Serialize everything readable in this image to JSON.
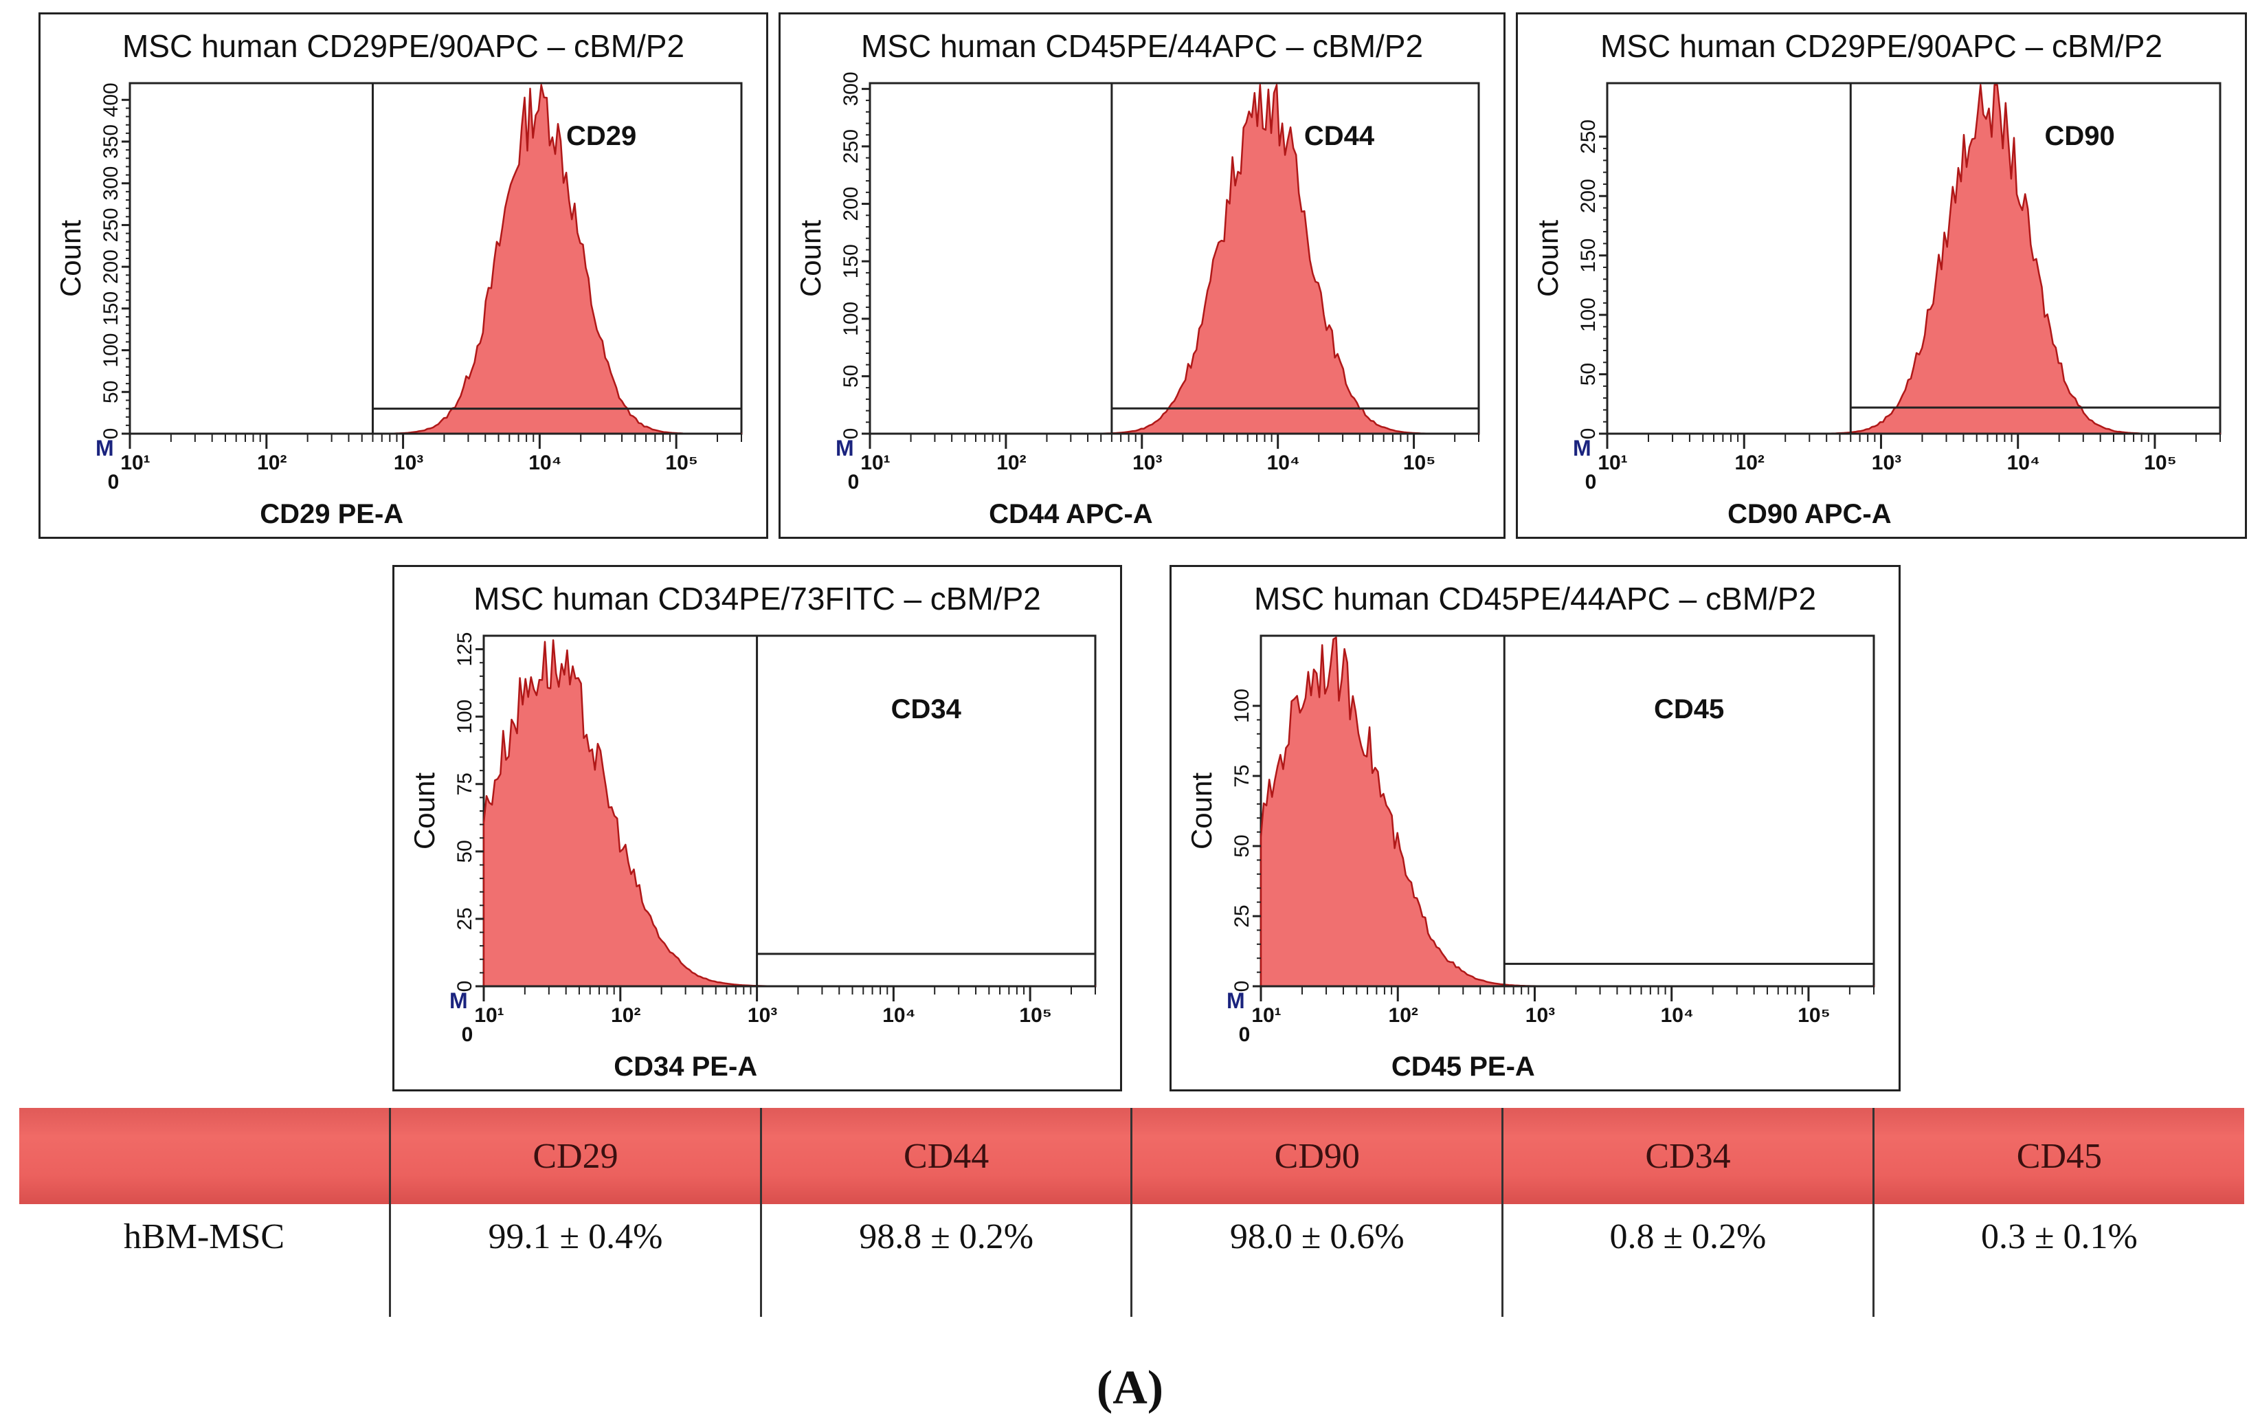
{
  "colors": {
    "fill": "#f07070",
    "stroke": "#b01818",
    "table_header": "#ec615e"
  },
  "chart_data": [
    {
      "type": "histogram",
      "title": "MSC human CD29PE/90APC – cBM/P2",
      "marker": "CD29",
      "xlabel": "CD29 PE-A",
      "ylabel": "Count",
      "xscale": "log",
      "xlim": [
        10,
        300000
      ],
      "ylim": [
        0,
        420
      ],
      "yticks": [
        0,
        50,
        100,
        150,
        200,
        250,
        300,
        350,
        400
      ],
      "xtick_labels": [
        "10¹",
        "10²",
        "10³",
        "10⁴",
        "10⁵"
      ],
      "gate": {
        "x_start": 600,
        "x_end": 300000,
        "baseline": 30
      },
      "peak_position": 10000,
      "peak_count": 405,
      "peak_width_decades": 0.28
    },
    {
      "type": "histogram",
      "title": "MSC human CD45PE/44APC  – cBM/P2",
      "marker": "CD44",
      "xlabel": "CD44 APC-A",
      "ylabel": "Count",
      "xscale": "log",
      "xlim": [
        10,
        300000
      ],
      "ylim": [
        0,
        305
      ],
      "yticks": [
        0,
        50,
        100,
        150,
        200,
        250,
        300
      ],
      "xtick_labels": [
        "10¹",
        "10²",
        "10³",
        "10⁴",
        "10⁵"
      ],
      "gate": {
        "x_start": 600,
        "x_end": 300000,
        "baseline": 22
      },
      "peak_position": 8000,
      "peak_count": 300,
      "peak_width_decades": 0.31
    },
    {
      "type": "histogram",
      "title": "MSC human CD29PE/90APC  – cBM/P2",
      "marker": "CD90",
      "xlabel": "CD90 APC-A",
      "ylabel": "Count",
      "xscale": "log",
      "xlim": [
        10,
        300000
      ],
      "ylim": [
        0,
        295
      ],
      "yticks": [
        0,
        50,
        100,
        150,
        200,
        250
      ],
      "xtick_labels": [
        "10¹",
        "10²",
        "10³",
        "10⁴",
        "10⁵"
      ],
      "gate": {
        "x_start": 600,
        "x_end": 300000,
        "baseline": 22
      },
      "peak_position": 6000,
      "peak_count": 285,
      "peak_width_decades": 0.3
    },
    {
      "type": "histogram",
      "title": "MSC human CD34PE/73FITC – cBM/P2",
      "marker": "CD34",
      "xlabel": "CD34 PE-A",
      "ylabel": "Count",
      "xscale": "log",
      "xlim": [
        10,
        300000
      ],
      "ylim": [
        0,
        130
      ],
      "yticks": [
        0,
        25,
        50,
        75,
        100,
        125
      ],
      "xtick_labels": [
        "10¹",
        "10²",
        "10³",
        "10⁴",
        "10⁵"
      ],
      "gate": {
        "x_start": 1000,
        "x_end": 300000,
        "baseline": 12
      },
      "peak_position": 30,
      "peak_count": 122,
      "peak_width_decades": 0.42
    },
    {
      "type": "histogram",
      "title": "MSC human CD45PE/44APC – cBM/P2",
      "marker": "CD45",
      "xlabel": "CD45 PE-A",
      "ylabel": "Count",
      "xscale": "log",
      "xlim": [
        10,
        300000
      ],
      "ylim": [
        0,
        125
      ],
      "yticks": [
        0,
        25,
        50,
        75,
        100
      ],
      "xtick_labels": [
        "10¹",
        "10²",
        "10³",
        "10⁴",
        "10⁵"
      ],
      "gate": {
        "x_start": 600,
        "x_end": 300000,
        "baseline": 8
      },
      "peak_position": 30,
      "peak_count": 118,
      "peak_width_decades": 0.4
    }
  ],
  "axis_common": {
    "m_label": "M",
    "zero_label": "0"
  },
  "table": {
    "headers": [
      "",
      "CD29",
      "CD44",
      "CD90",
      "CD34",
      "CD45"
    ],
    "rows": [
      [
        "hBM-MSC",
        "99.1 ± 0.4%",
        "98.8 ± 0.2%",
        "98.0 ± 0.6%",
        "0.8 ± 0.2%",
        "0.3 ± 0.1%"
      ]
    ]
  },
  "caption": "(A)"
}
